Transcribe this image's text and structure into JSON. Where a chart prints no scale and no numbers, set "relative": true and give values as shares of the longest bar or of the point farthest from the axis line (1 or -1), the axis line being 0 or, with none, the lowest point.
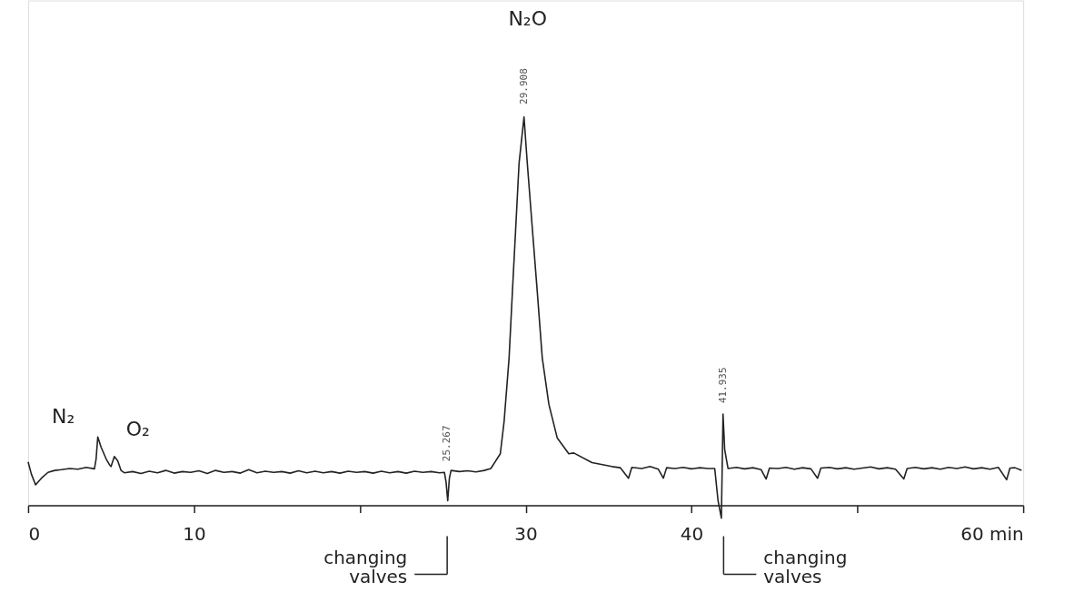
{
  "chart_data": {
    "type": "line",
    "relative": true,
    "xlim": [
      0,
      60
    ],
    "xticks": [
      0,
      10,
      {
        "value": 20,
        "label": null
      },
      30,
      40,
      {
        "value": 50,
        "label": null
      },
      {
        "value": 60,
        "label": "60 min"
      }
    ],
    "grid": false,
    "marker": "none",
    "line_style": "solid",
    "series": [
      {
        "color": "#222222",
        "x": [
          0,
          0.2,
          0.45,
          0.8,
          1.2,
          1.6,
          2.0,
          2.5,
          3.0,
          3.5,
          4.0,
          4.1,
          4.2,
          4.4,
          4.7,
          4.9,
          5.0,
          5.2,
          5.4,
          5.6,
          5.8,
          6.3,
          6.8,
          7.3,
          7.8,
          8.3,
          8.8,
          9.3,
          9.8,
          10.3,
          10.8,
          11.3,
          11.8,
          12.3,
          12.8,
          13.3,
          13.8,
          14.3,
          14.8,
          15.3,
          15.8,
          16.3,
          16.8,
          17.3,
          17.8,
          18.3,
          18.8,
          19.3,
          19.8,
          20.3,
          20.8,
          21.3,
          21.8,
          22.3,
          22.8,
          23.3,
          23.8,
          24.3,
          24.8,
          25.1,
          25.2,
          25.3,
          25.4,
          25.5,
          26.0,
          26.5,
          27.0,
          27.5,
          27.9,
          28.47,
          28.7,
          29.0,
          29.2,
          29.4,
          29.6,
          29.9,
          30.1,
          30.4,
          30.7,
          31.0,
          31.4,
          31.9,
          32.6,
          32.9,
          34.0,
          35.2,
          35.7,
          36.2,
          36.4,
          37.0,
          37.5,
          38.0,
          38.3,
          38.5,
          39.0,
          39.5,
          40.0,
          40.5,
          41.0,
          41.4,
          41.6,
          41.8,
          41.9,
          42.0,
          42.2,
          42.7,
          43.2,
          43.7,
          44.2,
          44.5,
          44.7,
          45.2,
          45.7,
          46.2,
          46.7,
          47.2,
          47.6,
          47.8,
          48.3,
          48.8,
          49.3,
          49.8,
          50.3,
          50.8,
          51.3,
          51.8,
          52.3,
          52.8,
          53.0,
          53.5,
          54.0,
          54.5,
          55.0,
          55.5,
          56.0,
          56.5,
          57.0,
          57.5,
          58.0,
          58.5,
          59.0,
          59.2,
          59.5,
          59.9
        ],
        "values": [
          0.112,
          0.08,
          0.053,
          0.07,
          0.085,
          0.09,
          0.092,
          0.095,
          0.093,
          0.098,
          0.094,
          0.12,
          0.176,
          0.15,
          0.12,
          0.105,
          0.1,
          0.126,
          0.115,
          0.09,
          0.084,
          0.087,
          0.082,
          0.088,
          0.084,
          0.09,
          0.083,
          0.087,
          0.085,
          0.089,
          0.082,
          0.09,
          0.085,
          0.087,
          0.083,
          0.092,
          0.084,
          0.088,
          0.085,
          0.087,
          0.083,
          0.089,
          0.084,
          0.088,
          0.084,
          0.087,
          0.083,
          0.088,
          0.085,
          0.087,
          0.083,
          0.088,
          0.084,
          0.087,
          0.083,
          0.088,
          0.085,
          0.087,
          0.084,
          0.085,
          0.06,
          0.012,
          0.07,
          0.09,
          0.087,
          0.089,
          0.086,
          0.09,
          0.095,
          0.133,
          0.216,
          0.38,
          0.55,
          0.714,
          0.88,
          1.0,
          0.88,
          0.714,
          0.55,
          0.38,
          0.26,
          0.174,
          0.133,
          0.135,
          0.11,
          0.1,
          0.097,
          0.07,
          0.098,
          0.095,
          0.1,
          0.093,
          0.07,
          0.097,
          0.095,
          0.098,
          0.094,
          0.097,
          0.095,
          0.095,
          0.012,
          -0.033,
          0.235,
          0.144,
          0.095,
          0.098,
          0.094,
          0.097,
          0.092,
          0.068,
          0.096,
          0.095,
          0.098,
          0.093,
          0.097,
          0.094,
          0.07,
          0.096,
          0.098,
          0.094,
          0.097,
          0.093,
          0.096,
          0.099,
          0.094,
          0.097,
          0.093,
          0.068,
          0.095,
          0.098,
          0.094,
          0.097,
          0.093,
          0.098,
          0.095,
          0.099,
          0.094,
          0.097,
          0.093,
          0.098,
          0.066,
          0.096,
          0.097,
          0.09
        ]
      }
    ],
    "annotations": [
      {
        "text": "N₂",
        "x": 4.2,
        "y": 0.176
      },
      {
        "text": "O₂",
        "x": 5.2,
        "y": 0.126
      },
      "N₂O",
      {
        "text": "25.267",
        "x": 25.267,
        "y": 0.09
      },
      {
        "text": "29.908",
        "x": 29.9,
        "y": 1.0
      },
      {
        "text": "41.935",
        "x": 41.935,
        "y": 0.235
      },
      "changing valves",
      "changing valves"
    ]
  }
}
